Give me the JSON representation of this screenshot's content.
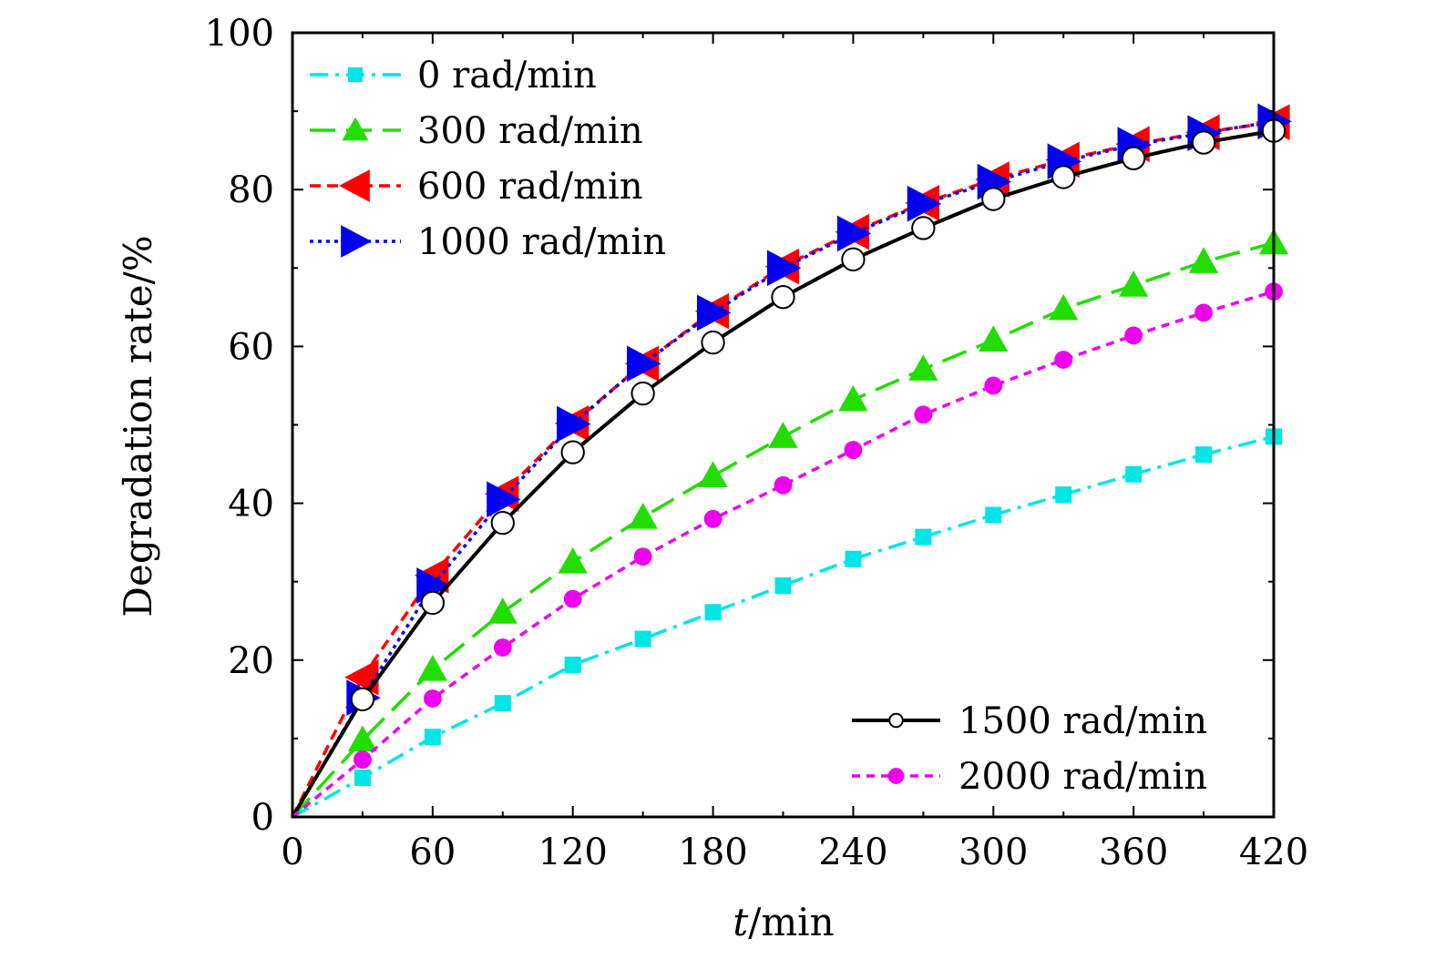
{
  "chart_data": {
    "type": "line",
    "xlabel_var": "t",
    "xlabel_unit": "/min",
    "ylabel": "Degradation rate/%",
    "xlim": [
      0,
      420
    ],
    "ylim": [
      0,
      100
    ],
    "xticks": [
      "0",
      "60",
      "120",
      "180",
      "240",
      "300",
      "360",
      "420"
    ],
    "yticks": [
      "0",
      "20",
      "40",
      "60",
      "80",
      "100"
    ],
    "x": [
      0,
      30,
      60,
      90,
      120,
      150,
      180,
      210,
      240,
      270,
      300,
      330,
      360,
      390,
      420
    ],
    "series": [
      {
        "name": "0 rad/min",
        "color": "#00e5e5",
        "dash": "dashdot",
        "marker": "square",
        "values": [
          0,
          5,
          10.2,
          14.5,
          19.4,
          22.7,
          26.1,
          29.5,
          32.9,
          35.7,
          38.5,
          41.1,
          43.7,
          46.2,
          48.5
        ]
      },
      {
        "name": "300 rad/min",
        "color": "#22dd00",
        "dash": "longdash",
        "marker": "triangle-up",
        "values": [
          0,
          9.8,
          18.8,
          26.1,
          32.5,
          38.2,
          43.5,
          48.5,
          53.2,
          57.1,
          60.8,
          64.8,
          67.8,
          70.8,
          73.2
        ]
      },
      {
        "name": "600 rad/min",
        "color": "#ff0000",
        "dash": "dash",
        "marker": "triangle-left",
        "values": [
          0,
          17.8,
          30.8,
          41.2,
          50.2,
          57.8,
          64.5,
          70.2,
          74.6,
          78.3,
          81.3,
          83.8,
          85.8,
          87.3,
          88.6
        ]
      },
      {
        "name": "1000 rad/min",
        "color": "#0000ee",
        "dash": "dot",
        "marker": "triangle-right",
        "values": [
          0,
          15.2,
          29.5,
          40.5,
          50.1,
          57.8,
          64.3,
          70.0,
          74.4,
          78.2,
          81.0,
          83.6,
          85.7,
          87.2,
          88.7
        ]
      },
      {
        "name": "1500 rad/min",
        "color": "#000000",
        "dash": "solid",
        "marker": "circle-open",
        "values": [
          0,
          15,
          27.3,
          37.5,
          46.5,
          54.0,
          60.5,
          66.3,
          71.1,
          75.1,
          78.8,
          81.6,
          84.0,
          86.0,
          87.5
        ]
      },
      {
        "name": "2000 rad/min",
        "color": "#ee00ee",
        "dash": "shortdash",
        "marker": "circle-filled",
        "values": [
          0,
          7.3,
          15.1,
          21.6,
          27.8,
          33.2,
          38.0,
          42.3,
          46.8,
          51.3,
          55.0,
          58.3,
          61.4,
          64.3,
          67.0
        ]
      }
    ]
  }
}
